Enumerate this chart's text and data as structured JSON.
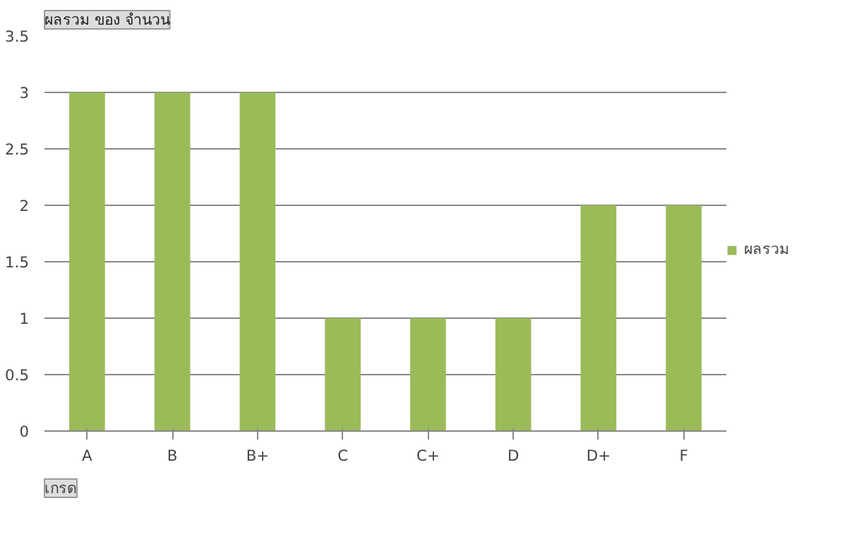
{
  "chart_data": {
    "type": "bar",
    "title": "ผลรวม ของ จำนวน",
    "xlabel": "เกรด",
    "categories": [
      "A",
      "B",
      "B+",
      "C",
      "C+",
      "D",
      "D+",
      "F"
    ],
    "series": [
      {
        "name": "ผลรวม",
        "color": "#9bbb59",
        "values": [
          3,
          3,
          3,
          1,
          1,
          1,
          2,
          2
        ]
      }
    ],
    "ylim": [
      0,
      3.5
    ],
    "yticks": [
      0,
      0.5,
      1,
      1.5,
      2,
      2.5,
      3,
      3.5
    ],
    "grid": "y",
    "legend": "right"
  }
}
